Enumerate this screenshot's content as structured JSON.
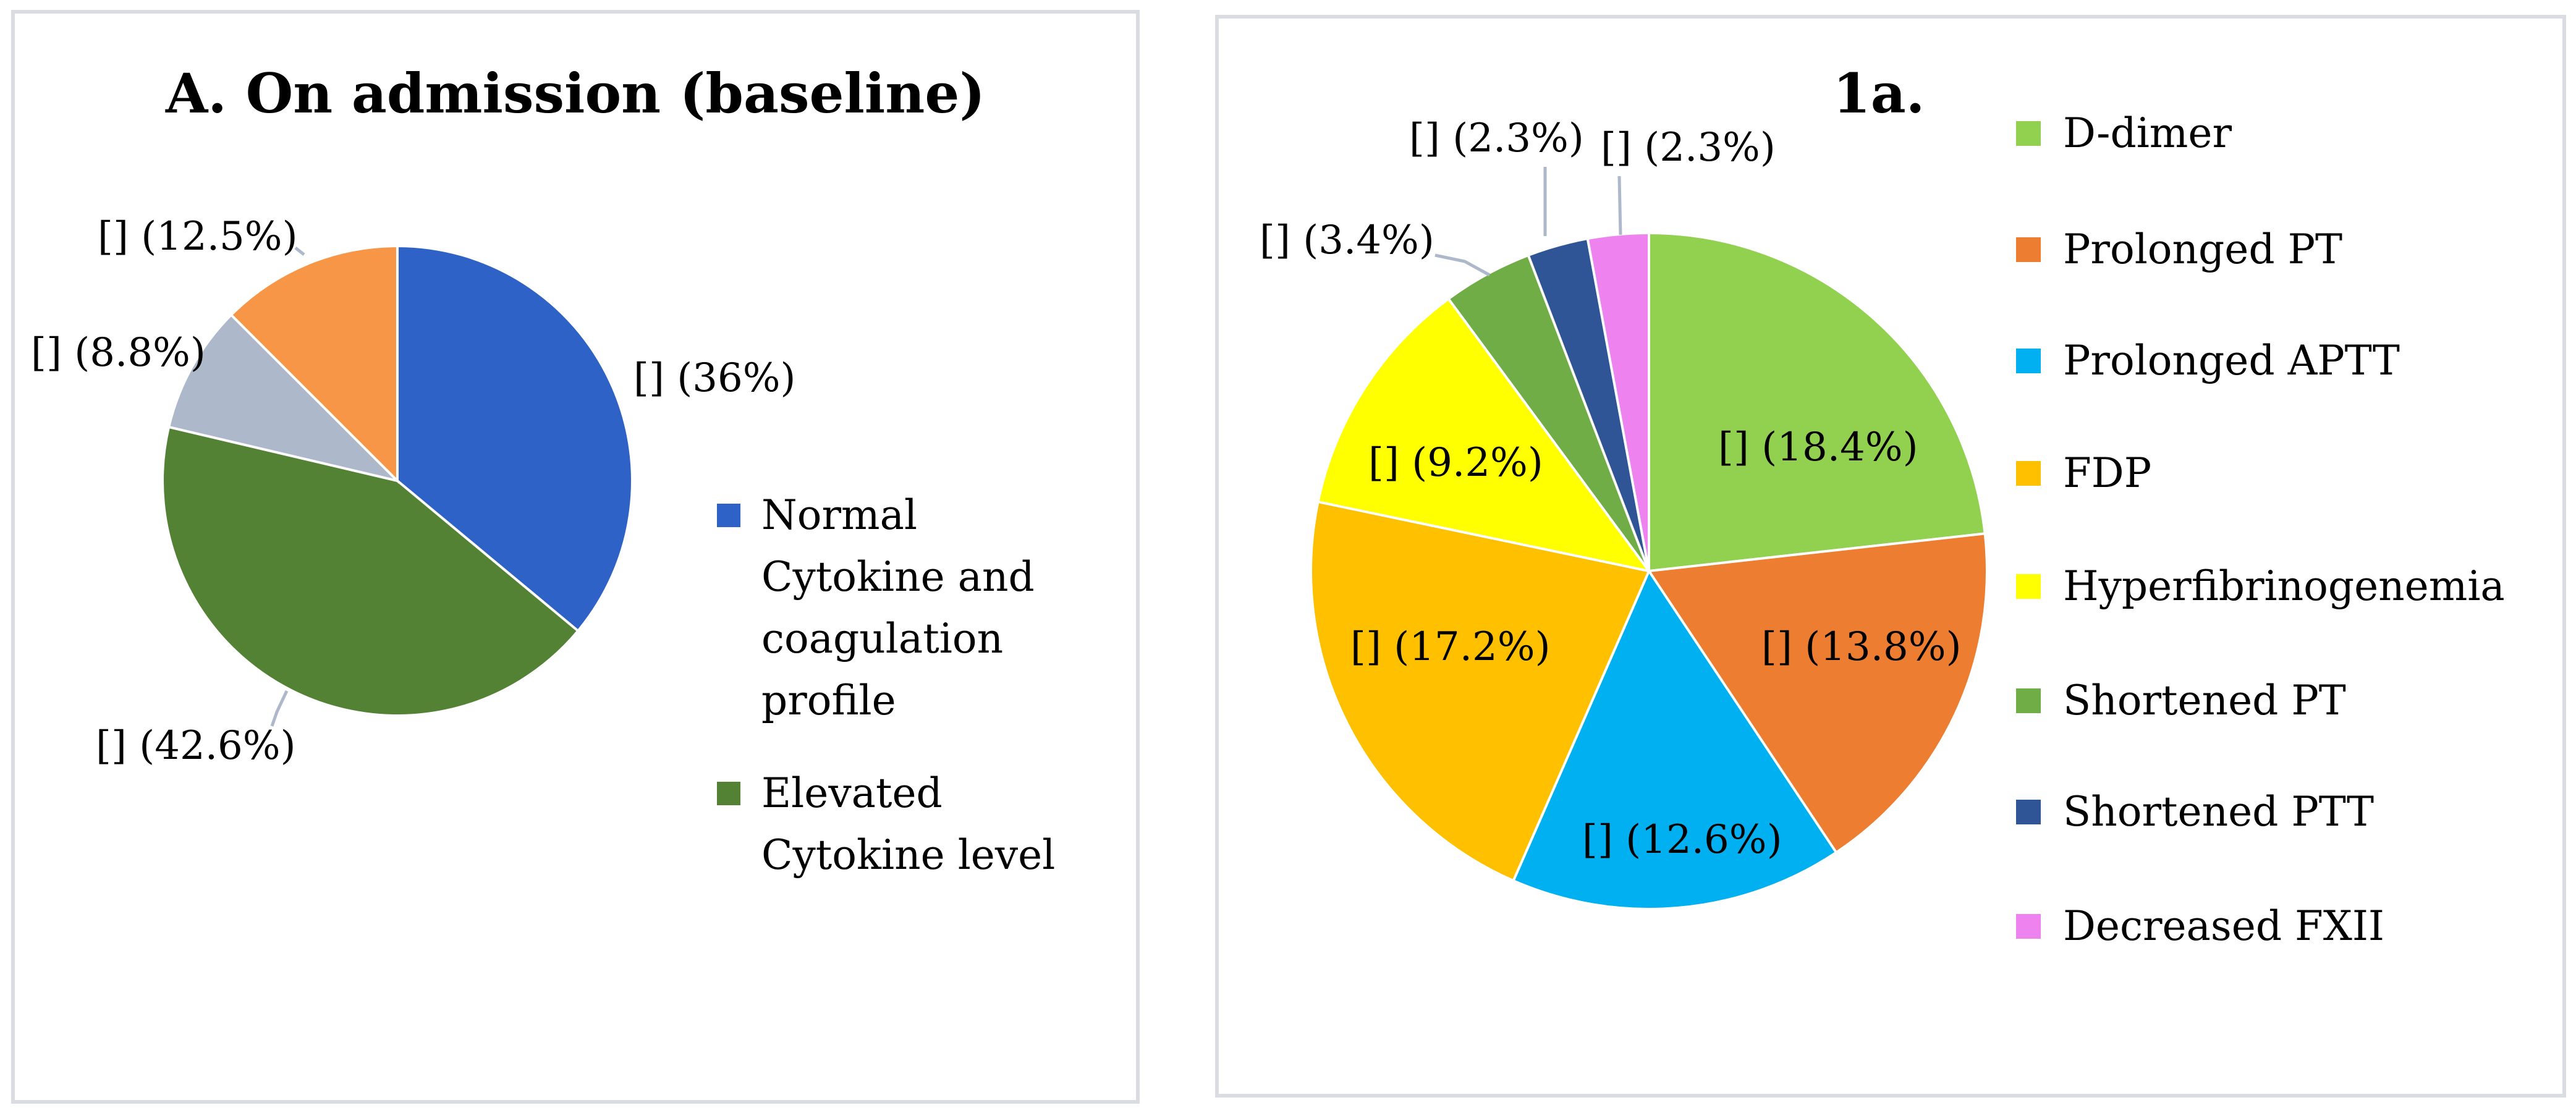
{
  "chart_data": [
    {
      "type": "pie",
      "title": "A. On admission (baseline)",
      "slices": [
        {
          "name": "Normal Cytokine and coagulation profile",
          "value": 36,
          "label": "[] (36%)",
          "color": "#2e62c6"
        },
        {
          "name": "Elevated Cytokine level",
          "value": 42.6,
          "label": "[] (42.6%)",
          "color": "#548235"
        },
        {
          "name": "",
          "value": 8.8,
          "label": "[] (8.8%)",
          "color": "#adb9ca"
        },
        {
          "name": "",
          "value": 12.5,
          "label": "[] (12.5%)",
          "color": "#f79646"
        }
      ],
      "legend": [
        {
          "lines": [
            "Normal",
            "Cytokine and",
            "coagulation",
            "profile"
          ],
          "color": "#2e62c6"
        },
        {
          "lines": [
            "Elevated",
            "Cytokine level"
          ],
          "color": "#548235"
        }
      ]
    },
    {
      "type": "pie",
      "title": "1a.",
      "slices": [
        {
          "name": "D-dimer",
          "value": 18.4,
          "label": "[] (18.4%)",
          "color": "#92d050"
        },
        {
          "name": "Prolonged PT",
          "value": 13.8,
          "label": "[] (13.8%)",
          "color": "#ed7d31"
        },
        {
          "name": "Prolonged APTT",
          "value": 12.6,
          "label": "[] (12.6%)",
          "color": "#00b0f0"
        },
        {
          "name": "FDP",
          "value": 17.2,
          "label": "[] (17.2%)",
          "color": "#ffc000"
        },
        {
          "name": "Hyperfibrinogenemia",
          "value": 9.2,
          "label": "[] (9.2%)",
          "color": "#ffff00"
        },
        {
          "name": "Shortened PT",
          "value": 3.4,
          "label": "[] (3.4%)",
          "color": "#70ad47"
        },
        {
          "name": "Shortened PTT",
          "value": 2.3,
          "label": "[] (2.3%)",
          "color": "#2f5597"
        },
        {
          "name": "Decreased FXII",
          "value": 2.3,
          "label": "[] (2.3%)",
          "color": "#ee82ee"
        }
      ],
      "legend": [
        {
          "lines": [
            "D-dimer"
          ],
          "color": "#92d050"
        },
        {
          "lines": [
            "Prolonged PT"
          ],
          "color": "#ed7d31"
        },
        {
          "lines": [
            "Prolonged APTT"
          ],
          "color": "#00b0f0"
        },
        {
          "lines": [
            "FDP"
          ],
          "color": "#ffc000"
        },
        {
          "lines": [
            " Hyperfibrinogenemia"
          ],
          "color": "#ffff00"
        },
        {
          "lines": [
            "Shortened PT"
          ],
          "color": "#70ad47"
        },
        {
          "lines": [
            "Shortened PTT"
          ],
          "color": "#2f5597"
        },
        {
          "lines": [
            "Decreased FXII"
          ],
          "color": "#ee82ee"
        }
      ]
    }
  ]
}
